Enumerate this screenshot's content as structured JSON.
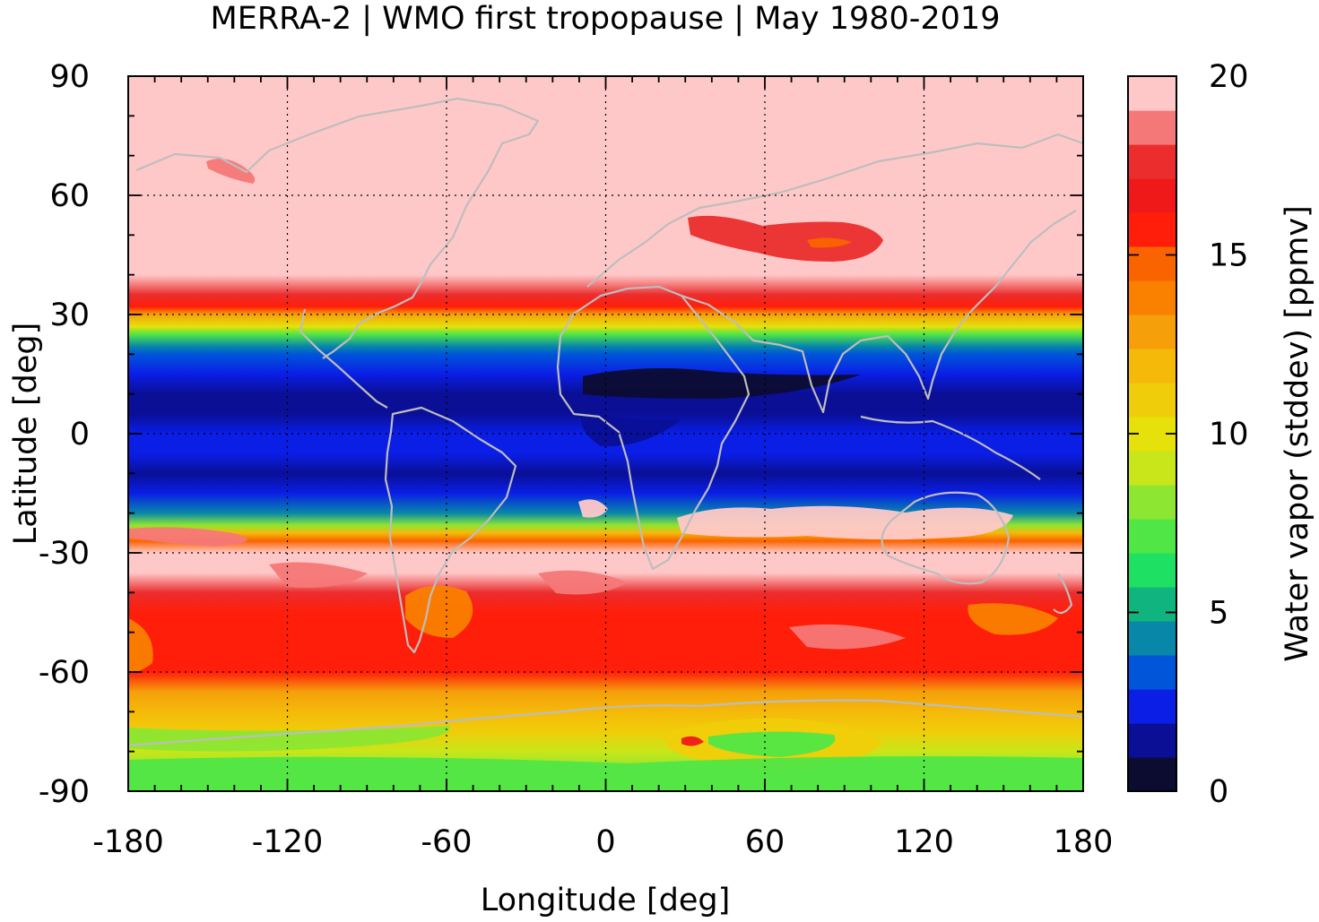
{
  "chart_data": {
    "type": "heatmap",
    "title": "MERRA-2 | WMO first tropopause | May 1980-2019",
    "xlabel": "Longitude [deg]",
    "ylabel": "Latitude [deg]",
    "xlim": [
      -180,
      180
    ],
    "ylim": [
      -90,
      90
    ],
    "xticks": [
      -180,
      -120,
      -60,
      0,
      60,
      120,
      180
    ],
    "yticks": [
      90,
      60,
      30,
      0,
      -30,
      -60,
      -90
    ],
    "grid": true,
    "colorbar": {
      "label": "Water vapor (stddev) [ppmv]",
      "range": [
        0,
        20
      ],
      "ticks": [
        20,
        15,
        10,
        5,
        0
      ],
      "colors": [
        "#0c0c30",
        "#0a0f96",
        "#0a1ee6",
        "#0055d9",
        "#0887a9",
        "#10b47e",
        "#1ee164",
        "#50e646",
        "#8ce632",
        "#c8e619",
        "#e6e10a",
        "#f0cd0a",
        "#f5b90a",
        "#f5a00a",
        "#fa8000",
        "#fa6400",
        "#ff1e0a",
        "#f01919",
        "#eb2d2d",
        "#f57878",
        "#ffc8c8"
      ]
    },
    "zonal_mean_profile": {
      "latitudes": [
        90,
        60,
        40,
        35,
        32,
        30,
        27,
        25,
        22,
        20,
        15,
        10,
        5,
        0,
        -5,
        -10,
        -15,
        -20,
        -23,
        -25,
        -27,
        -30,
        -35,
        -40,
        -45,
        -50,
        -55,
        -60,
        -65,
        -70,
        -75,
        -80,
        -85,
        -90
      ],
      "values": [
        20,
        20,
        20,
        18,
        16,
        13,
        10,
        7,
        4,
        3,
        2,
        1,
        0.5,
        1.5,
        2,
        1,
        1.5,
        4,
        8,
        12,
        15,
        20,
        20,
        18,
        16,
        16,
        16,
        16,
        13,
        12,
        11,
        9,
        8,
        8
      ]
    }
  }
}
